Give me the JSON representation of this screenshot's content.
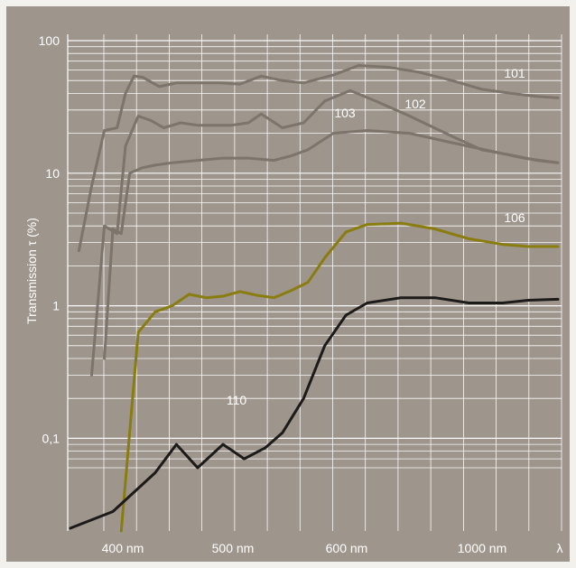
{
  "chart_data": {
    "type": "line",
    "ylabel": "Transmission τ (%)",
    "xlabel": "λ",
    "y_scale": "log",
    "ylim": [
      0.02,
      100
    ],
    "x_ticks": [
      "400 nm",
      "500 nm",
      "600 nm",
      "1000 nm"
    ],
    "y_ticks": [
      {
        "value": 100,
        "label": "100"
      },
      {
        "value": 10,
        "label": "10"
      },
      {
        "value": 1,
        "label": "1"
      },
      {
        "value": 0.1,
        "label": "0,1"
      }
    ],
    "grid": true,
    "colors": {
      "background": "#9e958c",
      "grid": "#ffffff",
      "filter_101_102_103": "#7d746c",
      "filter_106": "#8a7d0f",
      "filter_110": "#1d1a1a"
    },
    "series": [
      {
        "name": "101",
        "color": "#7d746c",
        "points": [
          [
            0.02,
            2.6
          ],
          [
            0.05,
            8
          ],
          [
            0.08,
            21
          ],
          [
            0.11,
            22
          ],
          [
            0.13,
            40
          ],
          [
            0.15,
            54
          ],
          [
            0.17,
            53
          ],
          [
            0.21,
            45
          ],
          [
            0.25,
            48
          ],
          [
            0.3,
            48
          ],
          [
            0.35,
            48
          ],
          [
            0.4,
            47
          ],
          [
            0.45,
            54
          ],
          [
            0.5,
            50
          ],
          [
            0.55,
            48
          ],
          [
            0.62,
            55
          ],
          [
            0.68,
            65
          ],
          [
            0.75,
            63
          ],
          [
            0.82,
            58
          ],
          [
            0.9,
            50
          ],
          [
            0.97,
            43
          ],
          [
            1.04,
            40
          ],
          [
            1.1,
            38
          ],
          [
            1.15,
            37
          ]
        ]
      },
      {
        "name": "102",
        "color": "#7d746c",
        "points": [
          [
            0.05,
            0.3
          ],
          [
            0.08,
            4
          ],
          [
            0.11,
            3.5
          ],
          [
            0.13,
            16
          ],
          [
            0.16,
            27
          ],
          [
            0.19,
            25
          ],
          [
            0.22,
            22
          ],
          [
            0.26,
            24
          ],
          [
            0.3,
            23
          ],
          [
            0.34,
            23
          ],
          [
            0.38,
            23
          ],
          [
            0.42,
            24
          ],
          [
            0.45,
            28
          ],
          [
            0.5,
            22
          ],
          [
            0.55,
            24
          ],
          [
            0.6,
            35
          ],
          [
            0.66,
            42
          ],
          [
            0.72,
            35
          ],
          [
            0.8,
            27
          ],
          [
            0.9,
            19
          ],
          [
            0.97,
            15
          ],
          [
            1.05,
            13.5
          ],
          [
            1.1,
            12.5
          ],
          [
            1.15,
            12
          ]
        ]
      },
      {
        "name": "103",
        "color": "#7d746c",
        "points": [
          [
            0.08,
            0.4
          ],
          [
            0.1,
            3.8
          ],
          [
            0.12,
            3.5
          ],
          [
            0.14,
            10
          ],
          [
            0.17,
            11
          ],
          [
            0.2,
            11.5
          ],
          [
            0.24,
            12
          ],
          [
            0.3,
            12.5
          ],
          [
            0.36,
            13
          ],
          [
            0.42,
            13
          ],
          [
            0.48,
            12.5
          ],
          [
            0.52,
            13.5
          ],
          [
            0.56,
            15
          ],
          [
            0.62,
            20
          ],
          [
            0.7,
            21
          ],
          [
            0.8,
            20
          ],
          [
            0.9,
            17
          ],
          [
            1.0,
            14.5
          ],
          [
            1.07,
            13
          ],
          [
            1.15,
            12
          ]
        ]
      },
      {
        "name": "106",
        "color": "#8a7d0f",
        "points": [
          [
            0.12,
            0.02
          ],
          [
            0.16,
            0.63
          ],
          [
            0.2,
            0.9
          ],
          [
            0.24,
            1.0
          ],
          [
            0.28,
            1.22
          ],
          [
            0.32,
            1.15
          ],
          [
            0.36,
            1.18
          ],
          [
            0.4,
            1.28
          ],
          [
            0.44,
            1.2
          ],
          [
            0.48,
            1.15
          ],
          [
            0.52,
            1.3
          ],
          [
            0.56,
            1.5
          ],
          [
            0.6,
            2.3
          ],
          [
            0.65,
            3.6
          ],
          [
            0.7,
            4.1
          ],
          [
            0.78,
            4.2
          ],
          [
            0.86,
            3.8
          ],
          [
            0.94,
            3.2
          ],
          [
            1.02,
            2.9
          ],
          [
            1.08,
            2.8
          ],
          [
            1.15,
            2.8
          ]
        ]
      },
      {
        "name": "110",
        "color": "#1d1a1a",
        "points": [
          [
            0.0,
            0.021
          ],
          [
            0.1,
            0.028
          ],
          [
            0.2,
            0.055
          ],
          [
            0.25,
            0.09
          ],
          [
            0.3,
            0.06
          ],
          [
            0.36,
            0.09
          ],
          [
            0.41,
            0.07
          ],
          [
            0.46,
            0.085
          ],
          [
            0.5,
            0.11
          ],
          [
            0.55,
            0.2
          ],
          [
            0.6,
            0.5
          ],
          [
            0.65,
            0.85
          ],
          [
            0.7,
            1.05
          ],
          [
            0.78,
            1.15
          ],
          [
            0.86,
            1.15
          ],
          [
            0.94,
            1.05
          ],
          [
            1.02,
            1.05
          ],
          [
            1.08,
            1.1
          ],
          [
            1.15,
            1.12
          ]
        ]
      }
    ],
    "series_labels": [
      {
        "name": "101",
        "text": "101"
      },
      {
        "name": "102",
        "text": "102"
      },
      {
        "name": "103",
        "text": "103"
      },
      {
        "name": "106",
        "text": "106"
      },
      {
        "name": "110",
        "text": "110"
      }
    ]
  }
}
